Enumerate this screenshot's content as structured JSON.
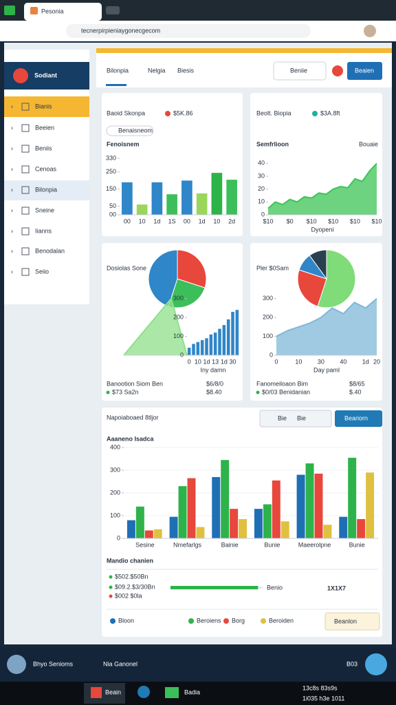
{
  "browser": {
    "tab_title": "Pesonia",
    "url": "tecnerpirpieniaygonecgecom"
  },
  "sidebar": {
    "title": "Sodiant",
    "items": [
      "Bianis",
      "Beeien",
      "Beniis",
      "Cenoas",
      "Bilonpia",
      "Sneine",
      "Iianns",
      "Benodalan",
      "Seiio"
    ]
  },
  "header": {
    "tabs": [
      "Bilonpia",
      "Nelgia",
      "Biesis"
    ],
    "search": "Beniie",
    "button": "Beaien"
  },
  "cards": [
    {
      "title": "Baoid Skonpa",
      "badge": "$5K.86",
      "filter": "Benaisneom",
      "subtitle": "Fenoisnem",
      "chart": {
        "type": "bar",
        "categories": [
          "00",
          "10",
          "1d",
          "1S",
          "00",
          "1d",
          "10",
          "2d"
        ],
        "values": [
          190,
          60,
          190,
          120,
          200,
          125,
          245,
          205
        ],
        "colors": [
          "#2f86c8",
          "#9ad65a",
          "#2f86c8",
          "#3cbf5a",
          "#2f86c8",
          "#9ad65a",
          "#2db34a",
          "#3cbf5a"
        ],
        "ylim": [
          0,
          350
        ],
        "yticks": [
          {
            "value": 0,
            "label": "00"
          },
          50,
          150,
          250,
          330
        ]
      }
    },
    {
      "title": "Beolt. Biopia",
      "badge": "$3A.8ft",
      "subtitle": "Semfrlioon",
      "note": "Bouaie",
      "chart": {
        "type": "area",
        "color": "#3cc456",
        "categories": [
          "$10",
          null,
          null,
          "$0",
          null,
          null,
          "$10",
          null,
          null,
          "$10",
          null,
          null,
          "$10",
          null,
          null,
          "$10"
        ],
        "values": [
          5,
          10,
          8,
          12,
          10,
          14,
          13,
          17,
          16,
          20,
          22,
          21,
          28,
          26,
          34,
          40
        ],
        "ylim": [
          0,
          45
        ],
        "yticks": [
          0,
          10,
          20,
          30,
          40
        ],
        "x_label": "Dyopeni"
      }
    },
    {
      "title": "Dosiolas Sone",
      "charts": [
        {
          "type": "pie",
          "values": [
            30,
            25,
            45
          ],
          "colors": [
            "#e8473c",
            "#3cbf5a",
            "#2f86c8"
          ]
        },
        {
          "type": "area",
          "color": "#8fe08a",
          "values": [
            0,
            100,
            200,
            300,
            0
          ],
          "ylim": [
            0,
            350
          ]
        },
        {
          "type": "bar",
          "color": "#2f86c8",
          "values": [
            40,
            60,
            70,
            80,
            90,
            110,
            120,
            140,
            160,
            190,
            230,
            240
          ],
          "categories": [
            "0",
            null,
            "10",
            null,
            "1d",
            null,
            "13",
            null,
            "1d",
            null,
            "30",
            null
          ],
          "ylim": [
            0,
            350
          ],
          "yticks": [
            0,
            100,
            200,
            300
          ],
          "x_label": "Iny damn"
        }
      ],
      "footer": [
        [
          "Banootion Siom Ben",
          "$6/8/0"
        ],
        [
          "$73 Sa2n",
          "$8.40"
        ]
      ]
    },
    {
      "title": "Pler $0Sam",
      "charts": [
        {
          "type": "pie",
          "values": [
            55,
            25,
            10,
            10
          ],
          "colors": [
            "#7fdc78",
            "#e8473c",
            "#2f86c8",
            "#284050"
          ]
        },
        {
          "type": "area",
          "color": "#7fb8d8",
          "values": [
            100,
            130,
            150,
            170,
            200,
            250,
            220,
            280,
            250,
            300
          ],
          "categories": [
            "0",
            null,
            "10",
            null,
            "30",
            null,
            "40",
            null,
            "1d",
            "20"
          ],
          "ylim": [
            0,
            350
          ],
          "yticks": [
            0,
            100,
            200,
            300
          ],
          "x_label": "Day paml"
        }
      ],
      "footer": [
        [
          "Fanomeiloaon Bim",
          "$8/65"
        ],
        [
          "$0/03 Benidanian",
          "$.40"
        ]
      ]
    }
  ],
  "summary": {
    "title": "Napoiaboaed 8tljor",
    "filters": [
      "Bie",
      "Bie"
    ],
    "button": "Beariorn",
    "chart": {
      "type": "bar",
      "title": "Aaaneno Isadca",
      "categories": [
        "Sesine",
        "Nmefarlgs",
        "Bainie",
        "Bunie",
        "Maeerolpne",
        "Bunie"
      ],
      "series": [
        {
          "name": "Bloon",
          "color": "#1f6fb5",
          "values": [
            80,
            95,
            270,
            130,
            280,
            95
          ]
        },
        {
          "name": "Beroiens",
          "color": "#2db34a",
          "values": [
            140,
            230,
            345,
            150,
            330,
            355
          ]
        },
        {
          "name": "Borg",
          "color": "#e8473c",
          "values": [
            35,
            265,
            130,
            255,
            285,
            85
          ]
        },
        {
          "name": "Beroiden",
          "color": "#e0c040",
          "values": [
            40,
            50,
            85,
            75,
            60,
            290
          ]
        }
      ],
      "ylim": [
        0,
        400
      ],
      "yticks": [
        0,
        100,
        200,
        300,
        400
      ]
    },
    "section_title": "Mandio chanien",
    "stats": [
      "$502.$50Bn",
      "$09.2.$3/30Bn",
      "$002 $0la"
    ],
    "progress": {
      "value": 95,
      "label": "Benio"
    },
    "big_number": "1X1X7",
    "dropdown": "Beanlon"
  },
  "taskbar": {
    "profile": "Bhyo Senioms",
    "app": "Nia Ganonel",
    "time": "B03",
    "items": [
      "Beain",
      "Badia"
    ],
    "clock": [
      "13c8s 83s9s",
      "1i035 h3e 1011"
    ]
  }
}
